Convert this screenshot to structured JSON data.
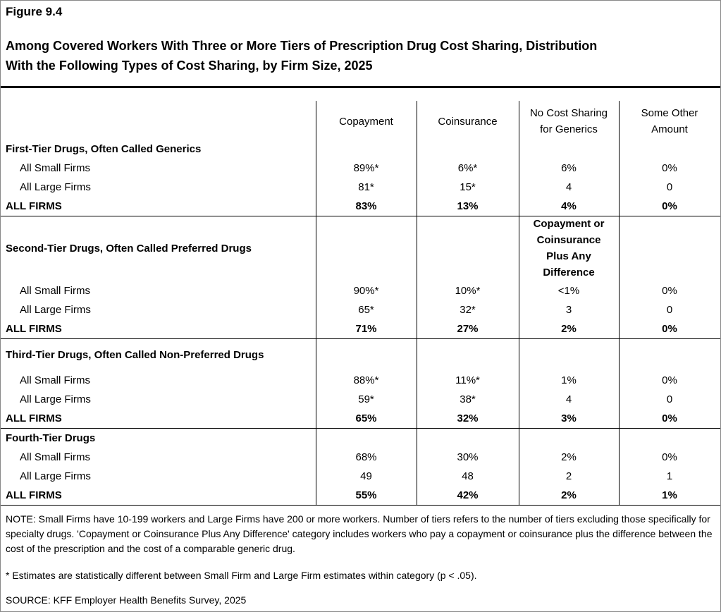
{
  "header": {
    "figure": "Figure 9.4",
    "title": [
      "Among Covered Workers With Three or More Tiers of Prescription Drug Cost Sharing, Distribution",
      "With the Following Types of Cost Sharing, by Firm Size, 2025"
    ]
  },
  "table": {
    "columns": [
      [
        "Copayment"
      ],
      [
        "Coinsurance"
      ],
      [
        "No Cost Sharing",
        "for Generics"
      ],
      [
        "Some Other",
        "Amount"
      ]
    ],
    "sections": [
      {
        "title": "First-Tier Drugs, Often Called Generics",
        "rows": [
          {
            "label": "All Small Firms",
            "values": [
              "89%*",
              "6%*",
              "6%",
              "0%"
            ]
          },
          {
            "label": "All Large Firms",
            "values": [
              "81*",
              "15*",
              "4",
              "0"
            ]
          },
          {
            "label": "ALL FIRMS",
            "values": [
              "83%",
              "13%",
              "4%",
              "0%"
            ]
          }
        ]
      },
      {
        "title": "Second-Tier Drugs, Often Called Preferred Drugs",
        "column_note": [
          "Copayment or",
          "Coinsurance",
          "Plus Any",
          "Difference"
        ],
        "rows": [
          {
            "label": "All Small Firms",
            "values": [
              "90%*",
              "10%*",
              "<1%",
              "0%"
            ]
          },
          {
            "label": "All Large Firms",
            "values": [
              "65*",
              "32*",
              "3",
              "0"
            ]
          },
          {
            "label": "ALL FIRMS",
            "values": [
              "71%",
              "27%",
              "2%",
              "0%"
            ]
          }
        ]
      },
      {
        "title": "Third-Tier Drugs, Often Called Non-Preferred Drugs",
        "rows": [
          {
            "label": "All Small Firms",
            "values": [
              "88%*",
              "11%*",
              "1%",
              "0%"
            ]
          },
          {
            "label": "All Large Firms",
            "values": [
              "59*",
              "38*",
              "4",
              "0"
            ]
          },
          {
            "label": "ALL FIRMS",
            "values": [
              "65%",
              "32%",
              "3%",
              "0%"
            ]
          }
        ]
      },
      {
        "title": "Fourth-Tier Drugs",
        "rows": [
          {
            "label": "All Small Firms",
            "values": [
              "68%",
              "30%",
              "2%",
              "0%"
            ]
          },
          {
            "label": "All Large Firms",
            "values": [
              "49",
              "48",
              "2",
              "1"
            ]
          },
          {
            "label": "ALL FIRMS",
            "values": [
              "55%",
              "42%",
              "2%",
              "1%"
            ]
          }
        ]
      }
    ]
  },
  "notes": {
    "note": "NOTE: Small Firms have 10-199 workers and Large Firms have 200 or more workers. Number of tiers refers to the number of tiers excluding those specifically for specialty drugs. 'Copayment or Coinsurance Plus Any Difference' category includes workers who pay a copayment or coinsurance plus the difference between the cost of the prescription and the cost of a comparable generic drug.",
    "significance": "* Estimates are statistically different between Small Firm and Large Firm estimates within category (p < .05).",
    "source": "SOURCE: KFF Employer Health Benefits Survey, 2025"
  }
}
